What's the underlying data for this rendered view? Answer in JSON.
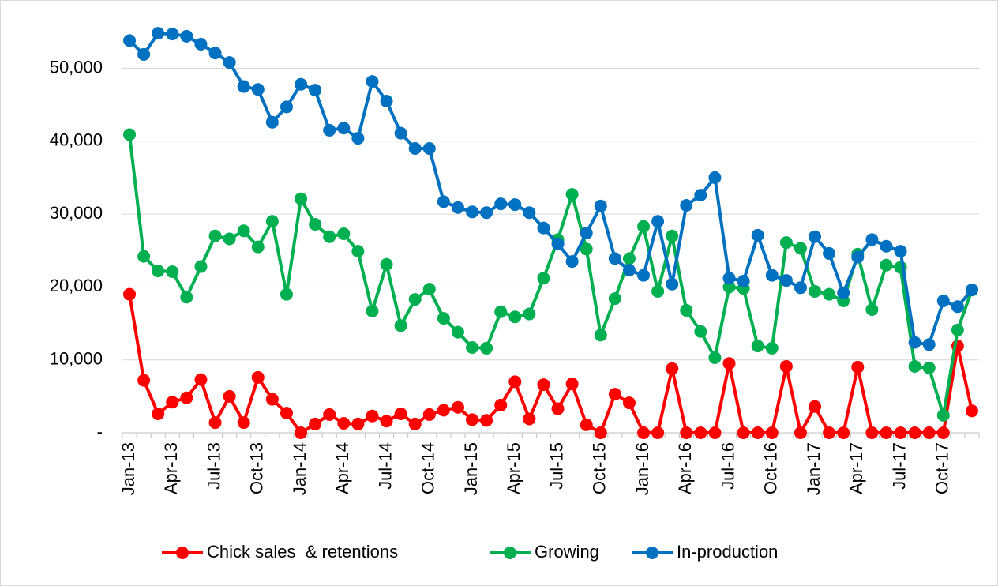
{
  "chart_data": {
    "type": "line",
    "categories": [
      "Jan-13",
      null,
      null,
      "Apr-13",
      null,
      null,
      "Jul-13",
      null,
      null,
      "Oct-13",
      null,
      null,
      "Jan-14",
      null,
      null,
      "Apr-14",
      null,
      null,
      "Jul-14",
      null,
      null,
      "Oct-14",
      null,
      null,
      "Jan-15",
      null,
      null,
      "Apr-15",
      null,
      null,
      "Jul-15",
      null,
      null,
      "Oct-15",
      null,
      null,
      "Jan-16",
      null,
      null,
      "Apr-16",
      null,
      null,
      "Jul-16",
      null,
      null,
      "Oct-16",
      null,
      null,
      "Jan-17",
      null,
      null,
      "Apr-17",
      null,
      null,
      "Jul-17",
      null,
      null,
      "Oct-17",
      null,
      null
    ],
    "series": [
      {
        "name": "Chick sales  & retentions",
        "color": "#ff0000",
        "values": [
          19000,
          7200,
          2600,
          4200,
          4800,
          7300,
          1400,
          5000,
          1400,
          7600,
          4600,
          2700,
          0,
          1200,
          2500,
          1300,
          1200,
          2300,
          1600,
          2600,
          1200,
          2500,
          3100,
          3500,
          1800,
          1700,
          3800,
          7000,
          1900,
          6600,
          3300,
          6700,
          1100,
          0,
          5300,
          4100,
          0,
          0,
          8800,
          0,
          0,
          0,
          9500,
          0,
          0,
          0,
          9100,
          0,
          3600,
          0,
          0,
          9000,
          0,
          0,
          0,
          0,
          0,
          0,
          11900,
          3000
        ]
      },
      {
        "name": "Growing",
        "color": "#00b050",
        "values": [
          40900,
          24200,
          22200,
          22100,
          18600,
          22800,
          27000,
          26600,
          27700,
          25500,
          29000,
          19000,
          32100,
          28600,
          26900,
          27300,
          24900,
          16700,
          23100,
          14700,
          18300,
          19700,
          15700,
          13800,
          11700,
          11600,
          16600,
          15900,
          16300,
          21200,
          26500,
          32700,
          25200,
          13400,
          18400,
          23900,
          28300,
          19400,
          27000,
          16800,
          13900,
          10300,
          20000,
          19800,
          11900,
          11600,
          26100,
          25300,
          19400,
          19000,
          18100,
          24500,
          16900,
          23000,
          22700,
          9100,
          8900,
          2400,
          14100,
          19600
        ]
      },
      {
        "name": "In-production",
        "color": "#0070c0",
        "values": [
          53800,
          51900,
          54800,
          54700,
          54400,
          53300,
          52100,
          50800,
          47500,
          47100,
          42600,
          44700,
          47800,
          47000,
          41500,
          41800,
          40400,
          48200,
          45500,
          41100,
          39000,
          39000,
          31700,
          30900,
          30300,
          30200,
          31400,
          31300,
          30200,
          28100,
          25900,
          23500,
          27400,
          31100,
          23900,
          22300,
          21600,
          29000,
          20400,
          31200,
          32600,
          35000,
          21200,
          20800,
          27100,
          21600,
          20900,
          19900,
          26900,
          24600,
          19200,
          24100,
          26500,
          25600,
          24900,
          12400,
          12100,
          18100,
          17300,
          19600
        ]
      }
    ],
    "ylim": [
      0,
      58500
    ],
    "yticks": [
      {
        "value": 0,
        "label": "-"
      },
      {
        "value": 10000,
        "label": "10,000"
      },
      {
        "value": 20000,
        "label": "20,000"
      },
      {
        "value": 30000,
        "label": "30,000"
      },
      {
        "value": 40000,
        "label": "40,000"
      },
      {
        "value": 50000,
        "label": "50,000"
      }
    ],
    "grid": true,
    "legend": "bottom"
  }
}
